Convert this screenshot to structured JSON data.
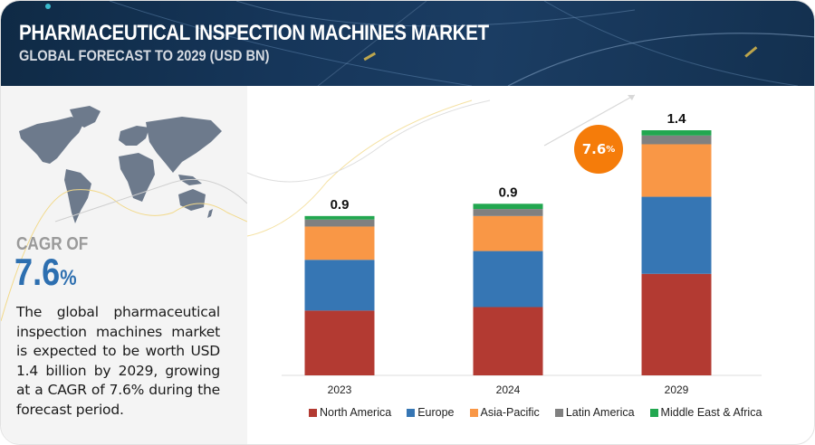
{
  "header": {
    "title": "PHARMACEUTICAL INSPECTION MACHINES MARKET",
    "subtitle": "GLOBAL FORECAST TO 2029 (USD BN)"
  },
  "left_panel": {
    "map_icon": "world-map-icon",
    "cagr_label": "CAGR OF",
    "cagr_number": "7.6",
    "cagr_percent_sign": "%",
    "description": "The global pharmaceutical inspection machines market is expected to be worth USD 1.4 billion by 2029, growing at a CAGR of 7.6% during the forecast period."
  },
  "badge": {
    "number": "7.6",
    "percent_sign": "%"
  },
  "colors": {
    "north_america": "#b33a32",
    "europe": "#3676b4",
    "asia_pacific": "#f99746",
    "latin_america": "#808080",
    "middle_east_africa": "#22a750",
    "badge": "#f57c0a",
    "cagr_text": "#2d6fb0"
  },
  "chart_data": {
    "type": "bar",
    "stacked": true,
    "title": "PHARMACEUTICAL INSPECTION MACHINES MARKET",
    "subtitle": "GLOBAL FORECAST TO 2029 (USD BN)",
    "xlabel": "",
    "ylabel": "",
    "ylim": [
      0,
      1.4
    ],
    "grid": false,
    "legend_position": "bottom",
    "categories": [
      "2023",
      "2024",
      "2029"
    ],
    "totals": [
      "0.9",
      "0.9",
      "1.4"
    ],
    "series": [
      {
        "name": "North America",
        "color": "#b33a32",
        "values": [
          0.37,
          0.39,
          0.58
        ]
      },
      {
        "name": "Europe",
        "color": "#3676b4",
        "values": [
          0.29,
          0.32,
          0.44
        ]
      },
      {
        "name": "Asia-Pacific",
        "color": "#f99746",
        "values": [
          0.19,
          0.2,
          0.3
        ]
      },
      {
        "name": "Latin America",
        "color": "#808080",
        "values": [
          0.04,
          0.04,
          0.05
        ]
      },
      {
        "name": "Middle East & Africa",
        "color": "#22a750",
        "values": [
          0.02,
          0.03,
          0.03
        ]
      }
    ],
    "annotations": [
      "7.6%"
    ]
  }
}
